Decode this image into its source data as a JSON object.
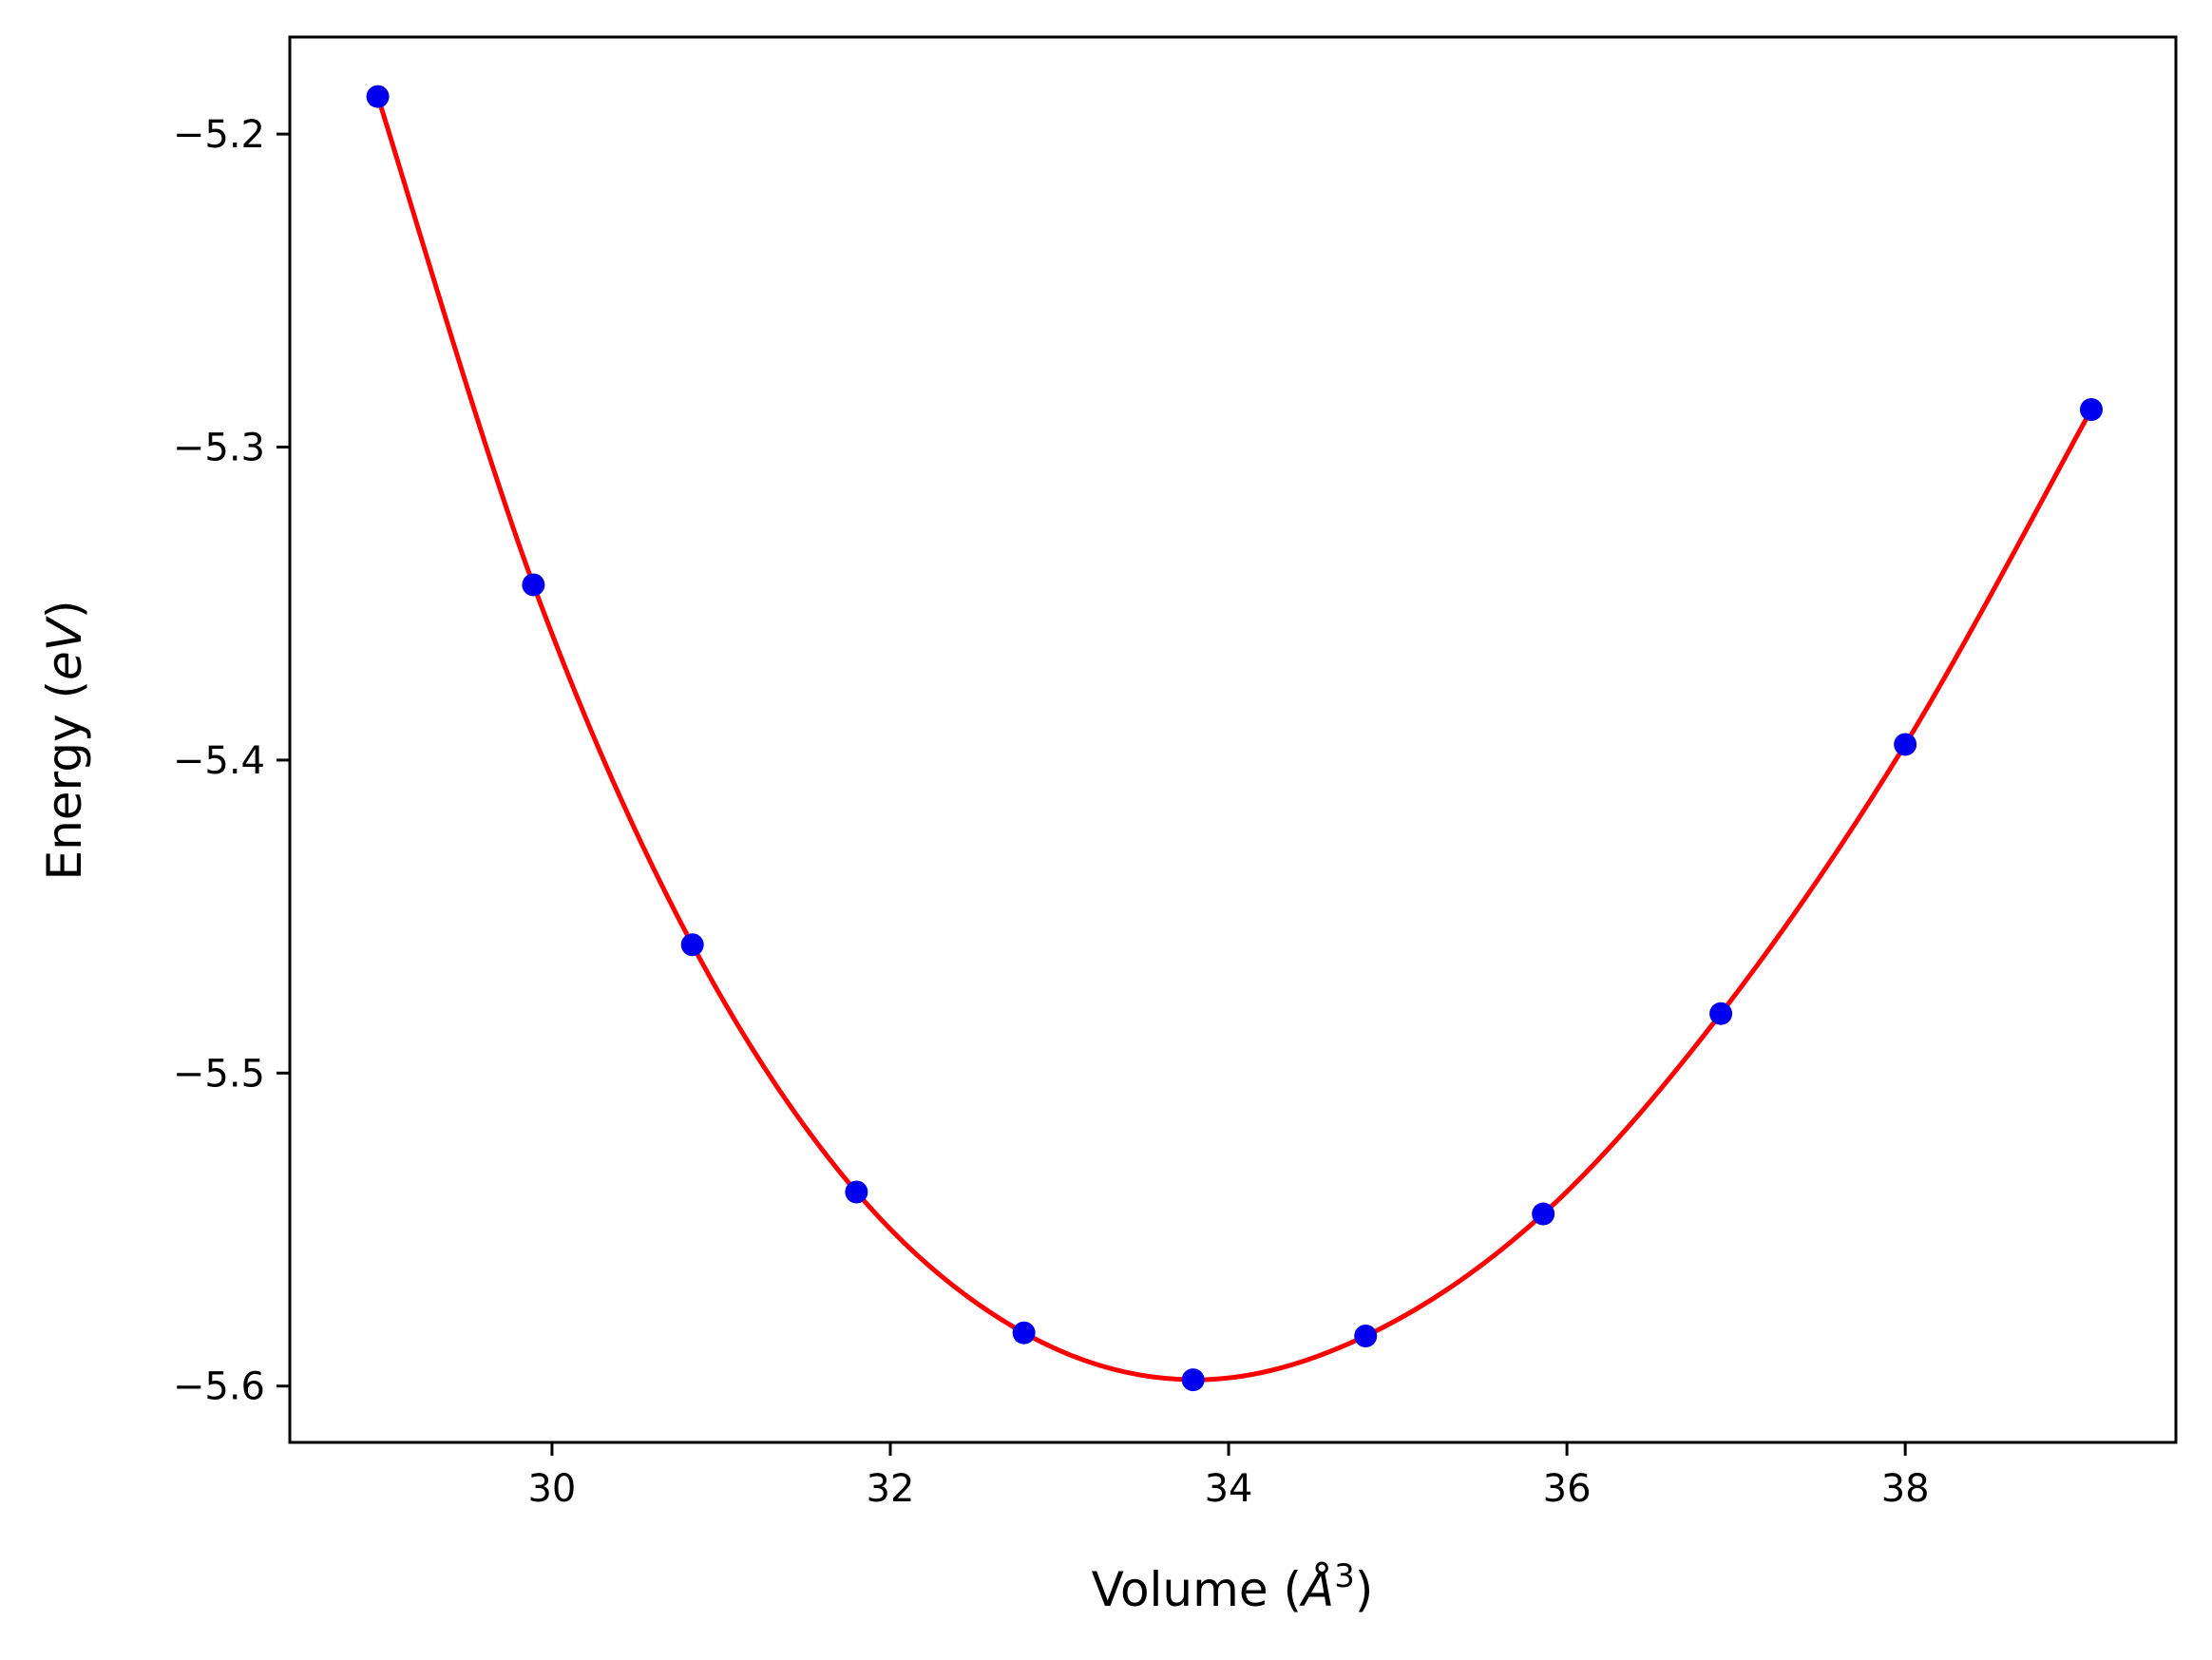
{
  "chart_data": {
    "type": "scatter",
    "xlabel": "Volume (Å³)",
    "xlabel_parts": {
      "prefix": "Volume (",
      "symbol": "Å",
      "exponent": "3",
      "suffix": ")"
    },
    "ylabel": "Energy (eV)",
    "ylabel_parts": {
      "prefix": "Energy (",
      "unit": "eV",
      "suffix": ")"
    },
    "xlim": [
      28.45,
      39.6
    ],
    "ylim": [
      -5.618,
      -5.169
    ],
    "xticks": [
      30,
      32,
      34,
      36,
      38
    ],
    "xtick_labels": [
      "30",
      "32",
      "34",
      "36",
      "38"
    ],
    "yticks": [
      -5.2,
      -5.3,
      -5.4,
      -5.5,
      -5.6
    ],
    "ytick_labels": [
      "−5.2",
      "−5.3",
      "−5.4",
      "−5.5",
      "−5.6"
    ],
    "grid": false,
    "series": [
      {
        "kind": "scatter",
        "color": "#0000ee",
        "x": [
          28.97,
          29.89,
          30.83,
          31.8,
          32.79,
          33.79,
          34.81,
          35.86,
          36.91,
          38.0,
          39.1
        ],
        "y": [
          -5.188,
          -5.344,
          -5.459,
          -5.538,
          -5.583,
          -5.598,
          -5.584,
          -5.545,
          -5.481,
          -5.395,
          -5.288
        ]
      },
      {
        "kind": "line",
        "color": "#ff0000",
        "fit": "equation of state fit through data points"
      }
    ]
  }
}
